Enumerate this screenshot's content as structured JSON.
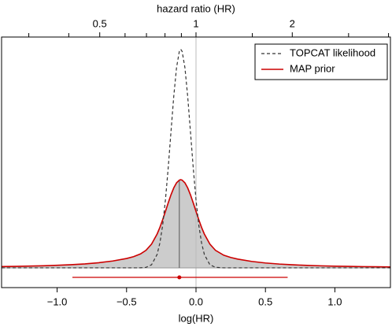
{
  "chart_data": {
    "type": "density",
    "xlabel": "log(HR)",
    "x2label": "hazard ratio (HR)",
    "x": [
      -1.4,
      -1.3,
      -1.2,
      -1.1,
      -1.0,
      -0.9,
      -0.8,
      -0.7,
      -0.6,
      -0.5,
      -0.45,
      -0.4,
      -0.36,
      -0.32,
      -0.28,
      -0.26,
      -0.24,
      -0.22,
      -0.2,
      -0.18,
      -0.16,
      -0.14,
      -0.12,
      -0.11,
      -0.1,
      -0.08,
      -0.06,
      -0.04,
      -0.02,
      0,
      0.02,
      0.04,
      0.06,
      0.1,
      0.14,
      0.2,
      0.25,
      0.3,
      0.4,
      0.5,
      0.6,
      0.7,
      0.8,
      0.9,
      1.0,
      1.1,
      1.2,
      1.3,
      1.4
    ],
    "series": [
      {
        "name": "TOPCAT likelihood",
        "color": "#333333",
        "dash": "dashed",
        "values": [
          0,
          0,
          0,
          0,
          0,
          0,
          0,
          0,
          0,
          0,
          0.0001,
          0.0017,
          0.0133,
          0.0788,
          0.341,
          0.633,
          1.085,
          1.725,
          2.537,
          3.454,
          4.353,
          5.08,
          5.487,
          5.54,
          5.487,
          5.08,
          4.353,
          3.454,
          2.537,
          1.725,
          1.085,
          0.633,
          0.341,
          0.0788,
          0.0133,
          0.0005,
          0,
          0,
          0,
          0,
          0,
          0,
          0,
          0,
          0,
          0,
          0,
          0,
          0
        ]
      },
      {
        "name": "MAP prior",
        "color": "#cc0000",
        "fill": "#cccccc",
        "values": [
          0.0327,
          0.0381,
          0.0448,
          0.0535,
          0.065,
          0.0803,
          0.1012,
          0.1307,
          0.1735,
          0.2375,
          0.2836,
          0.353,
          0.4459,
          0.603,
          0.858,
          1.027,
          1.222,
          1.432,
          1.648,
          1.853,
          2.028,
          2.156,
          2.224,
          2.233,
          2.224,
          2.156,
          2.028,
          1.853,
          1.648,
          1.432,
          1.222,
          1.027,
          0.858,
          0.603,
          0.4459,
          0.321,
          0.2633,
          0.2224,
          0.1637,
          0.124,
          0.0965,
          0.0768,
          0.0624,
          0.0516,
          0.0433,
          0.0369,
          0.0317,
          0.0276,
          0.0242
        ]
      }
    ],
    "median": -0.12,
    "interval": {
      "low": -0.89,
      "high": 0.66,
      "point": -0.12,
      "y": -0.24
    },
    "reference_line": 0,
    "xlim": [
      -1.4,
      1.4
    ],
    "ylim": [
      -0.5,
      5.85
    ],
    "xticks": [
      {
        "value": -1.0,
        "label": "−1.0"
      },
      {
        "value": -0.5,
        "label": "−0.5"
      },
      {
        "value": 0,
        "label": "0.0"
      },
      {
        "value": 0.5,
        "label": "0.5"
      },
      {
        "value": 1.0,
        "label": "1.0"
      }
    ],
    "x2scale": "log",
    "x2ticks": [
      0.5,
      1,
      2
    ],
    "x2minor_ticks": [
      0.3,
      0.4,
      0.6,
      0.7,
      0.8,
      0.9,
      1.5,
      3,
      4
    ],
    "legend": "top-right"
  }
}
